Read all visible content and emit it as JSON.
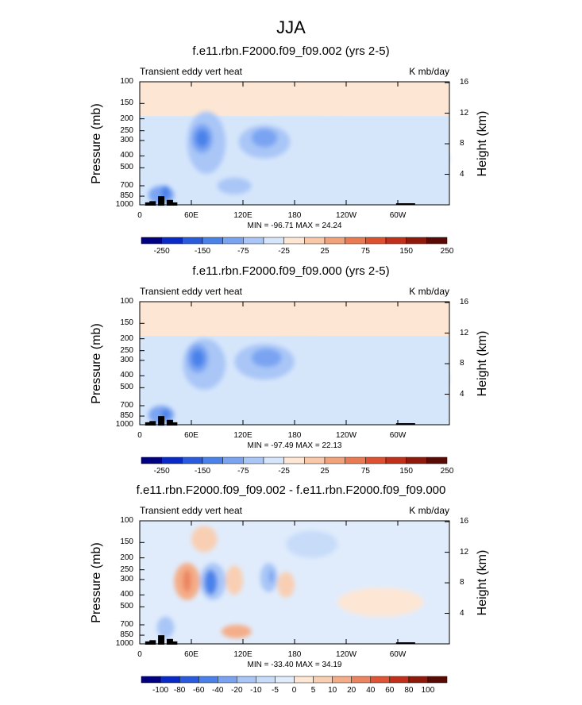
{
  "title": "JJA",
  "chart_data": [
    {
      "type": "heatmap",
      "title": "f.e11.rbn.F2000.f09_f09.002 (yrs 2-5)",
      "left_subtitle": "Transient eddy vert heat",
      "right_subtitle": "K mb/day",
      "ylabel": "Pressure (mb)",
      "ylabel_right": "Height (km)",
      "x_ticks": [
        "0",
        "60E",
        "120E",
        "180",
        "120W",
        "60W"
      ],
      "y_ticks": [
        "100",
        "150",
        "200",
        "250",
        "300",
        "400",
        "500",
        "700",
        "850",
        "1000"
      ],
      "y_ticks_right": [
        "16",
        "12",
        "8",
        "4"
      ],
      "ylim": [
        1000,
        100
      ],
      "stats": "MIN = -96.71  MAX = 24.24",
      "colorbar_labels": [
        "-250",
        "-150",
        "-75",
        "-25",
        "25",
        "75",
        "150",
        "250"
      ],
      "features": [
        {
          "region": "60E-80E, 200-400 mb",
          "value": -90
        },
        {
          "region": "120E-160E, 250-400 mb",
          "value": -40
        },
        {
          "region": "stratosphere 100-200 mb",
          "value": 10
        }
      ]
    },
    {
      "type": "heatmap",
      "title": "f.e11.rbn.F2000.f09_f09.000 (yrs 2-5)",
      "left_subtitle": "Transient eddy vert heat",
      "right_subtitle": "K mb/day",
      "ylabel": "Pressure (mb)",
      "ylabel_right": "Height (km)",
      "x_ticks": [
        "0",
        "60E",
        "120E",
        "180",
        "120W",
        "60W"
      ],
      "y_ticks": [
        "100",
        "150",
        "200",
        "250",
        "300",
        "400",
        "500",
        "700",
        "850",
        "1000"
      ],
      "y_ticks_right": [
        "16",
        "12",
        "8",
        "4"
      ],
      "ylim": [
        1000,
        100
      ],
      "stats": "MIN = -97.49  MAX = 22.13",
      "colorbar_labels": [
        "-250",
        "-150",
        "-75",
        "-25",
        "25",
        "75",
        "150",
        "250"
      ],
      "features": [
        {
          "region": "60E-80E, 200-400 mb",
          "value": -95
        },
        {
          "region": "120E-160E, 250-400 mb",
          "value": -40
        },
        {
          "region": "stratosphere 100-200 mb",
          "value": 10
        }
      ]
    },
    {
      "type": "heatmap",
      "title": "f.e11.rbn.F2000.f09_f09.002 - f.e11.rbn.F2000.f09_f09.000",
      "left_subtitle": "Transient eddy vert heat",
      "right_subtitle": "K mb/day",
      "ylabel": "Pressure (mb)",
      "ylabel_right": "Height (km)",
      "x_ticks": [
        "0",
        "60E",
        "120E",
        "180",
        "120W",
        "60W"
      ],
      "y_ticks": [
        "100",
        "150",
        "200",
        "250",
        "300",
        "400",
        "500",
        "700",
        "850",
        "1000"
      ],
      "y_ticks_right": [
        "16",
        "12",
        "8",
        "4"
      ],
      "ylim": [
        1000,
        100
      ],
      "stats": "MIN = -33.40  MAX = 34.19",
      "colorbar_labels": [
        "-100",
        "-80",
        "-60",
        "-40",
        "-20",
        "-10",
        "-5",
        "0",
        "5",
        "10",
        "20",
        "40",
        "60",
        "80",
        "100"
      ],
      "features": [
        {
          "region": "50E-60E, 200-400 mb",
          "value": 30
        },
        {
          "region": "70E-90E, 200-400 mb",
          "value": -30
        },
        {
          "region": "150E-160E, 200-400 mb",
          "value": -15
        }
      ]
    }
  ],
  "palette_main": [
    "#000080",
    "#0a2ac8",
    "#2a5bdc",
    "#4a82ea",
    "#7aa4f2",
    "#a9c6f7",
    "#d5e6fb",
    "#fde6d4",
    "#f8c8a8",
    "#f2a27a",
    "#ea7a52",
    "#dd5030",
    "#c0301a",
    "#8f1a0c",
    "#5a0a04"
  ],
  "palette_diff": [
    "#000080",
    "#0a2ac8",
    "#2a5bdc",
    "#4a82ea",
    "#7aa4f2",
    "#a9c6f7",
    "#c7dcf9",
    "#e0ecfc",
    "#fde6d4",
    "#f9cfb3",
    "#f4ad88",
    "#ec8560",
    "#de5535",
    "#c0301a",
    "#8f1a0c",
    "#5a0a04"
  ]
}
